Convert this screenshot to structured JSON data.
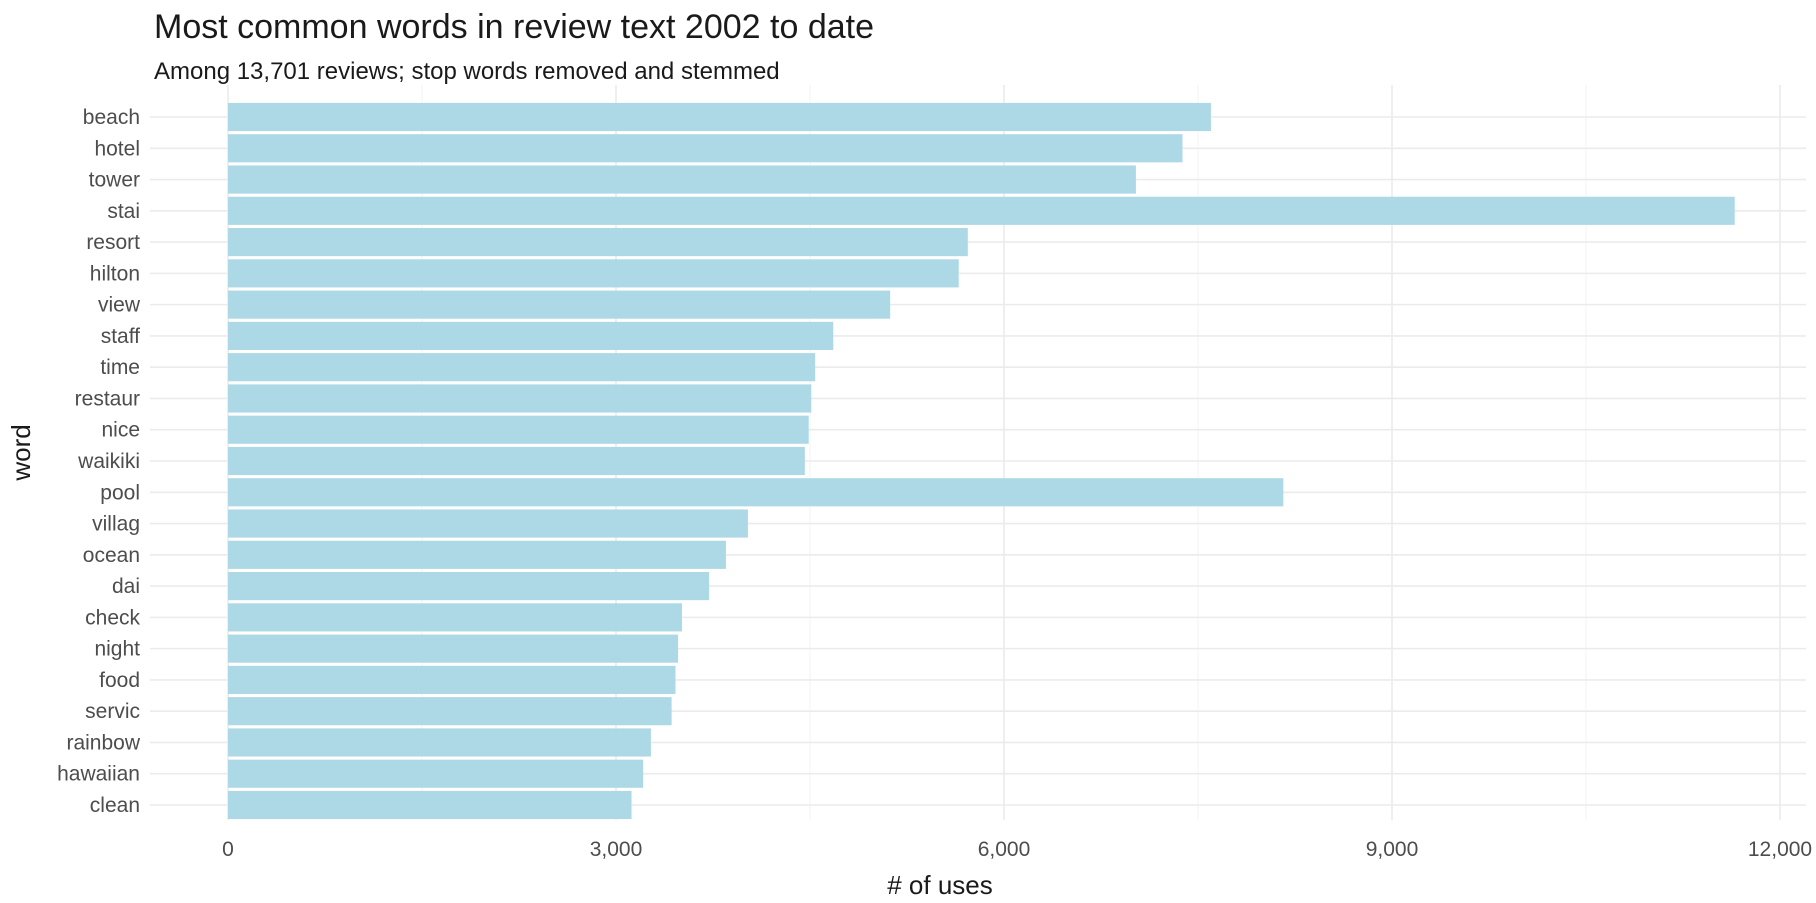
{
  "chart_data": {
    "type": "bar",
    "orientation": "horizontal",
    "title": "Most common words in review text 2002 to date",
    "subtitle": "Among 13,701 reviews; stop words removed and stemmed",
    "xlabel": "# of uses",
    "ylabel": "word",
    "xlim": [
      0,
      12000
    ],
    "xticks": [
      0,
      3000,
      6000,
      9000,
      12000
    ],
    "xtick_labels": [
      "0",
      "3,000",
      "6,000",
      "9,000",
      "12,000"
    ],
    "grid": true,
    "bar_color": "#add8e6",
    "categories": [
      "beach",
      "hotel",
      "tower",
      "stai",
      "resort",
      "hilton",
      "view",
      "staff",
      "time",
      "restaur",
      "nice",
      "waikiki",
      "pool",
      "villag",
      "ocean",
      "dai",
      "check",
      "night",
      "food",
      "servic",
      "rainbow",
      "hawaiian",
      "clean"
    ],
    "values": [
      7600,
      7380,
      7020,
      11650,
      5720,
      5650,
      5120,
      4680,
      4540,
      4510,
      4490,
      4460,
      8160,
      4020,
      3850,
      3720,
      3510,
      3480,
      3460,
      3430,
      3270,
      3210,
      3120
    ]
  }
}
